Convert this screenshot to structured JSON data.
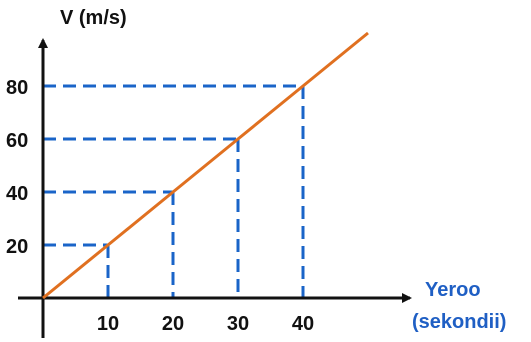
{
  "chart_data": {
    "type": "line",
    "ylabel": "V (m/s)",
    "xlabel_lines": [
      "Yeroo",
      "(sekondii)"
    ],
    "x_ticks": [
      "10",
      "20",
      "30",
      "40"
    ],
    "y_ticks": [
      "20",
      "40",
      "60",
      "80"
    ],
    "xlim": [
      0,
      50
    ],
    "ylim": [
      0,
      95
    ],
    "series": [
      {
        "x": [
          0,
          10,
          20,
          30,
          40,
          50
        ],
        "y": [
          0,
          20,
          40,
          60,
          80,
          100
        ]
      }
    ],
    "guide_points": [
      {
        "x": 10,
        "y": 20
      },
      {
        "x": 20,
        "y": 40
      },
      {
        "x": 30,
        "y": 60
      },
      {
        "x": 40,
        "y": 80
      }
    ],
    "grid": false,
    "colors": {
      "line": "#e07020",
      "guides": "#1a64c8",
      "axes": "#111111",
      "xlabel": "#1f5fc4"
    }
  }
}
